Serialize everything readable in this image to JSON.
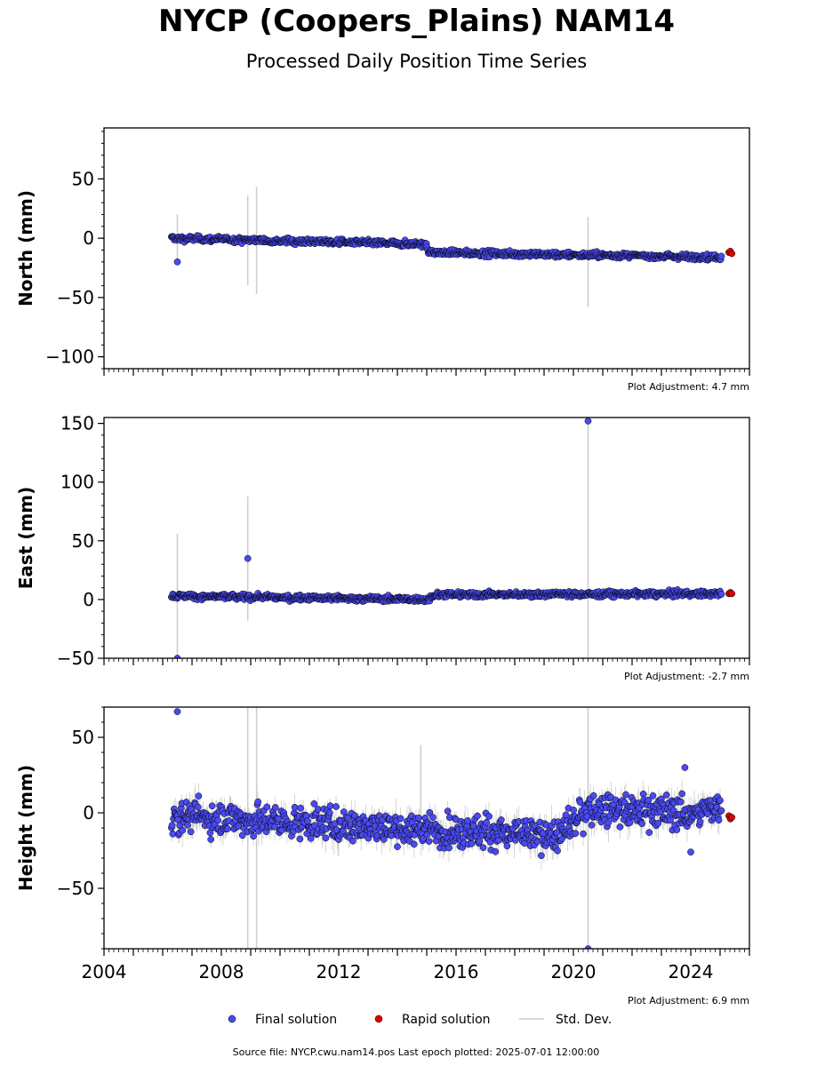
{
  "title": "NYCP (Coopers_Plains) NAM14",
  "subtitle": "Processed Daily Position Time Series",
  "source": "Source file: NYCP.cwu.nam14.pos  Last epoch plotted: 2025-07-01 12:00:00",
  "colors": {
    "final": "#4a4af0",
    "rapid": "#e00000",
    "stddev": "#cccccc"
  },
  "chart_data": {
    "type": "scatter",
    "xlim": [
      2004.0,
      2026.0
    ],
    "xticks": [
      "2004",
      "2008",
      "2012",
      "2016",
      "2020",
      "2024"
    ],
    "xtick_values": [
      2004,
      2008,
      2012,
      2016,
      2020,
      2024
    ],
    "legend": {
      "placement": "bottom-center",
      "entries": [
        "Final solution",
        "Rapid solution",
        "Std. Dev."
      ]
    },
    "panels": [
      {
        "ylabel": "North (mm)",
        "ylim": [
          -110,
          93
        ],
        "yticks": [
          -100,
          -50,
          0,
          50
        ],
        "ytick_labels": [
          "−100",
          "−50",
          "0",
          "50"
        ],
        "adjustment": "Plot Adjustment: 4.7 mm",
        "trend": [
          [
            2006.3,
            0
          ],
          [
            2015.0,
            -5
          ],
          [
            2015.05,
            -12
          ],
          [
            2025.0,
            -16
          ]
        ],
        "noise": 2,
        "outliers": [
          {
            "x": 2006.5,
            "y": -20,
            "err": 0
          },
          {
            "x": 2006.5,
            "y": 0,
            "err": 20
          },
          {
            "x": 2008.9,
            "y": -2,
            "err": 38
          },
          {
            "x": 2009.2,
            "y": -2,
            "err": 45
          },
          {
            "x": 2020.5,
            "y": -20,
            "err": 38
          }
        ],
        "rapid": [
          [
            2025.3,
            -12
          ],
          [
            2025.35,
            -11
          ],
          [
            2025.4,
            -13
          ]
        ]
      },
      {
        "ylabel": "East (mm)",
        "ylim": [
          -50,
          155
        ],
        "yticks": [
          -50,
          0,
          50,
          100,
          150
        ],
        "ytick_labels": [
          "−50",
          "0",
          "50",
          "100",
          "150"
        ],
        "adjustment": "Plot Adjustment: -2.7 mm",
        "trend": [
          [
            2006.3,
            3
          ],
          [
            2015.0,
            0
          ],
          [
            2015.3,
            4
          ],
          [
            2025.0,
            5
          ]
        ],
        "noise": 2,
        "outliers": [
          {
            "x": 2006.5,
            "y": -50,
            "err": 0
          },
          {
            "x": 2006.5,
            "y": 3,
            "err": 53
          },
          {
            "x": 2008.9,
            "y": 35,
            "err": 0
          },
          {
            "x": 2008.9,
            "y": 35,
            "err": 53
          },
          {
            "x": 2020.5,
            "y": 152,
            "err": 0
          },
          {
            "x": 2020.5,
            "y": 10,
            "err": 140
          }
        ],
        "rapid": [
          [
            2025.3,
            5
          ],
          [
            2025.35,
            6
          ],
          [
            2025.4,
            5
          ]
        ]
      },
      {
        "ylabel": "Height (mm)",
        "ylim": [
          -90,
          70
        ],
        "yticks": [
          -50,
          0,
          50
        ],
        "ytick_labels": [
          "−50",
          "0",
          "50"
        ],
        "adjustment": "Plot Adjustment: 6.9 mm",
        "trend": [
          [
            2006.3,
            -2
          ],
          [
            2012.0,
            -8
          ],
          [
            2016.0,
            -12
          ],
          [
            2019.5,
            -15
          ],
          [
            2020.5,
            2
          ],
          [
            2024.5,
            0
          ],
          [
            2025.0,
            5
          ]
        ],
        "noise": 9,
        "outliers": [
          {
            "x": 2006.5,
            "y": 67,
            "err": 0
          },
          {
            "x": 2008.9,
            "y": -10,
            "err": 95
          },
          {
            "x": 2009.2,
            "y": -10,
            "err": 95
          },
          {
            "x": 2014.8,
            "y": 20,
            "err": 25
          },
          {
            "x": 2020.5,
            "y": -90,
            "err": 0
          },
          {
            "x": 2020.5,
            "y": -10,
            "err": 95
          },
          {
            "x": 2024.0,
            "y": -26,
            "err": 0
          },
          {
            "x": 2023.8,
            "y": 30,
            "err": 0
          }
        ],
        "rapid": [
          [
            2025.3,
            -2
          ],
          [
            2025.35,
            -4
          ],
          [
            2025.4,
            -3
          ]
        ]
      }
    ]
  }
}
